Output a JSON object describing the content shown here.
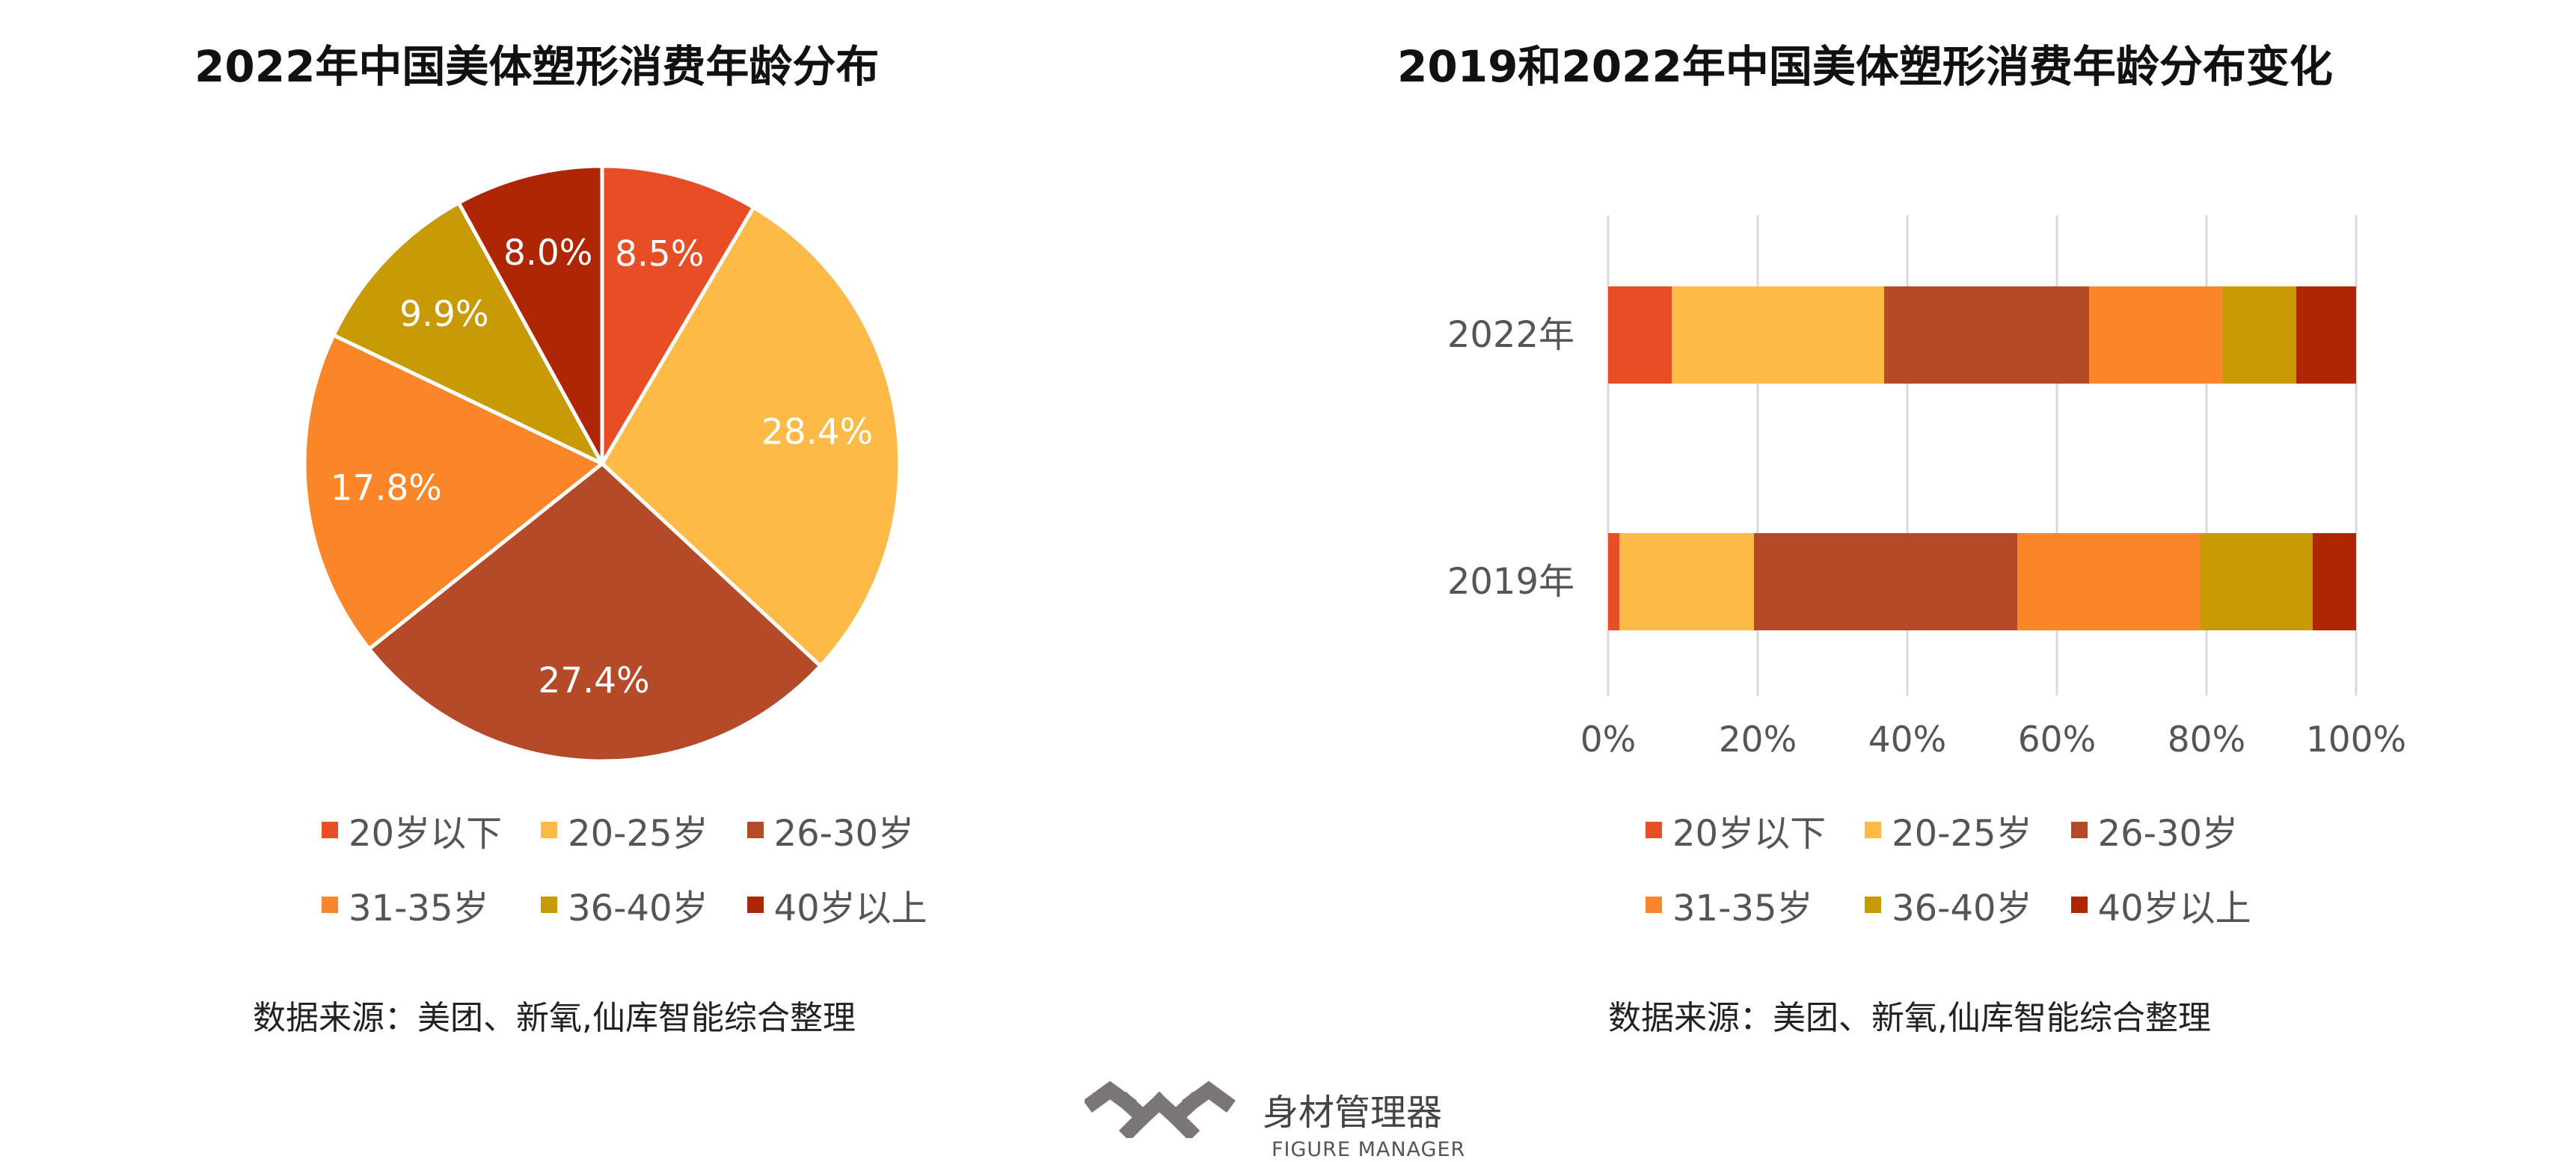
{
  "chart_data": [
    {
      "type": "pie",
      "title": "2022年中国美体塑形消费年龄分布",
      "categories": [
        "20岁以下",
        "20-25岁",
        "26-30岁",
        "31-35岁",
        "36-40岁",
        "40岁以上"
      ],
      "values": [
        8.5,
        28.4,
        27.4,
        17.8,
        9.9,
        8.0
      ],
      "labels": [
        "8.5%",
        "28.4%",
        "27.4%",
        "17.8%",
        "9.9%",
        "8.0%"
      ],
      "colors": [
        "#E84E25",
        "#FDBA47",
        "#B54A28",
        "#FB8529",
        "#C89A05",
        "#AF2605"
      ],
      "legend": [
        "20岁以下",
        "20-25岁",
        "26-30岁",
        "31-35岁",
        "36-40岁",
        "40岁以上"
      ],
      "legend_position": "bottom"
    },
    {
      "type": "bar",
      "orientation": "horizontal",
      "stacked": "100%",
      "title": "2019和2022年中国美体塑形消费年龄分布变化",
      "categories": [
        "2022年",
        "2019年"
      ],
      "series": [
        {
          "name": "20岁以下",
          "values": [
            8.5,
            1.5
          ],
          "color": "#E84E25"
        },
        {
          "name": "20-25岁",
          "values": [
            28.4,
            18.0
          ],
          "color": "#FDBA47"
        },
        {
          "name": "26-30岁",
          "values": [
            27.4,
            35.2
          ],
          "color": "#B54A28"
        },
        {
          "name": "31-35岁",
          "values": [
            17.8,
            24.5
          ],
          "color": "#FB8529"
        },
        {
          "name": "36-40岁",
          "values": [
            9.9,
            15.0
          ],
          "color": "#C89A05"
        },
        {
          "name": "40岁以上",
          "values": [
            8.0,
            5.8
          ],
          "color": "#AF2605"
        }
      ],
      "xlim": [
        0,
        100
      ],
      "xticks": [
        "0%",
        "20%",
        "40%",
        "60%",
        "80%",
        "100%"
      ],
      "grid": "vertical",
      "legend_position": "bottom"
    }
  ],
  "sources": {
    "left": "数据来源：美团、新氧,仙库智能综合整理",
    "right": "数据来源：美团、新氧,仙库智能综合整理"
  },
  "brand": {
    "name_cn": "身材管理器",
    "name_en": "FIGURE MANAGER",
    "logo_color": "#7A7675",
    "logo_icon": "figure-manager-logo-icon"
  }
}
